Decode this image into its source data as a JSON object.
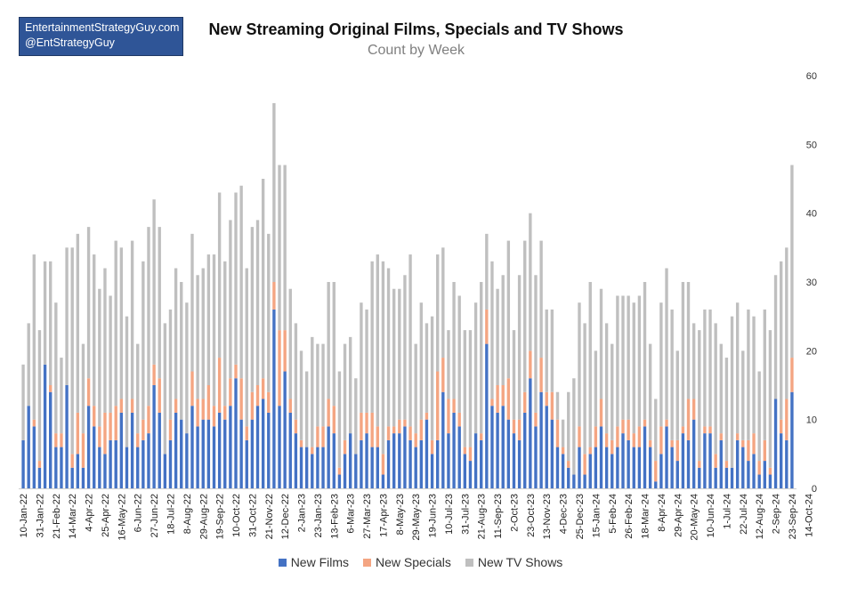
{
  "brand": {
    "line1": "EntertainmentStrategyGuy.com",
    "line2": "@EntStrategyGuy"
  },
  "chart_data": {
    "type": "bar",
    "stacked": true,
    "title": "New Streaming Original Films, Specials and TV Shows",
    "subtitle": "Count by Week",
    "xlabel": "",
    "ylabel": "",
    "ylim": [
      0,
      60
    ],
    "yticks": [
      0,
      10,
      20,
      30,
      40,
      50,
      60
    ],
    "y_axis_side": "right",
    "grid": false,
    "legend_position": "bottom",
    "x_start": "2022-01-10",
    "x_step_days": 7,
    "x_label_every": 3,
    "x_tick_labels": [
      "10-Jan-22",
      "31-Jan-22",
      "21-Feb-22",
      "14-Mar-22",
      "4-Apr-22",
      "25-Apr-22",
      "16-May-22",
      "6-Jun-22",
      "27-Jun-22",
      "18-Jul-22",
      "8-Aug-22",
      "29-Aug-22",
      "19-Sep-22",
      "10-Oct-22",
      "31-Oct-22",
      "21-Nov-22",
      "12-Dec-22",
      "2-Jan-23",
      "23-Jan-23",
      "13-Feb-23",
      "6-Mar-23",
      "27-Mar-23",
      "17-Apr-23",
      "8-May-23",
      "29-May-23",
      "19-Jun-23",
      "10-Jul-23",
      "31-Jul-23",
      "21-Aug-23",
      "11-Sep-23",
      "2-Oct-23",
      "23-Oct-23",
      "13-Nov-23",
      "4-Dec-23",
      "25-Dec-23",
      "15-Jan-24",
      "5-Feb-24",
      "26-Feb-24",
      "18-Mar-24",
      "8-Apr-24",
      "29-Apr-24",
      "20-May-24",
      "10-Jun-24",
      "1-Jul-24",
      "22-Jul-24",
      "12-Aug-24",
      "2-Sep-24",
      "23-Sep-24",
      "14-Oct-24"
    ],
    "series": [
      {
        "name": "New Films",
        "color": "#4472c4",
        "values": [
          7,
          12,
          9,
          3,
          18,
          14,
          6,
          6,
          15,
          3,
          5,
          3,
          12,
          9,
          6,
          5,
          7,
          7,
          11,
          6,
          11,
          6,
          7,
          8,
          15,
          11,
          5,
          7,
          11,
          10,
          8,
          12,
          9,
          10,
          10,
          9,
          11,
          10,
          12,
          16,
          10,
          7,
          10,
          12,
          13,
          11,
          26,
          12,
          17,
          11,
          8,
          6,
          6,
          5,
          6,
          6,
          9,
          8,
          2,
          5,
          8,
          5,
          7,
          8,
          6,
          6,
          2,
          7,
          8,
          8,
          9,
          7,
          6,
          7,
          10,
          5,
          7,
          14,
          8,
          11,
          9,
          5,
          4,
          8,
          7,
          21,
          12,
          11,
          12,
          10,
          8,
          7,
          11,
          16,
          9,
          14,
          12,
          10,
          6,
          5,
          3,
          2,
          6,
          2,
          5,
          6,
          9,
          6,
          5,
          6,
          8,
          7,
          6,
          6,
          9,
          6,
          1,
          5,
          9,
          6,
          4,
          8,
          7,
          10,
          3,
          8,
          8,
          3,
          7,
          3,
          3,
          7,
          6,
          4,
          5,
          2,
          4,
          2,
          13,
          8,
          7,
          14
        ]
      },
      {
        "name": "New Specials",
        "color": "#f4a582",
        "values": [
          0,
          0,
          1,
          1,
          0,
          1,
          2,
          2,
          0,
          2,
          6,
          5,
          4,
          3,
          3,
          6,
          4,
          5,
          2,
          0,
          2,
          2,
          3,
          4,
          3,
          5,
          0,
          3,
          2,
          0,
          0,
          5,
          4,
          3,
          5,
          3,
          8,
          2,
          4,
          2,
          6,
          2,
          4,
          3,
          3,
          3,
          4,
          11,
          6,
          2,
          2,
          1,
          0,
          1,
          3,
          3,
          4,
          4,
          1,
          2,
          0,
          0,
          4,
          3,
          5,
          3,
          3,
          2,
          1,
          2,
          1,
          2,
          2,
          3,
          1,
          2,
          10,
          5,
          5,
          2,
          2,
          1,
          2,
          0,
          1,
          5,
          1,
          4,
          3,
          6,
          2,
          3,
          3,
          4,
          2,
          5,
          2,
          4,
          4,
          1,
          1,
          0,
          3,
          3,
          1,
          3,
          4,
          2,
          2,
          3,
          2,
          3,
          2,
          3,
          1,
          1,
          3,
          4,
          1,
          1,
          3,
          1,
          6,
          3,
          1,
          1,
          1,
          2,
          1,
          1,
          0,
          1,
          1,
          3,
          3,
          2,
          3,
          1,
          0,
          2,
          6,
          5
        ]
      },
      {
        "name": "New TV Shows",
        "color": "#bfbfbf",
        "values": [
          11,
          12,
          24,
          19,
          15,
          18,
          19,
          11,
          20,
          30,
          26,
          13,
          22,
          22,
          20,
          21,
          17,
          24,
          22,
          19,
          23,
          13,
          23,
          26,
          24,
          22,
          19,
          16,
          19,
          20,
          19,
          20,
          18,
          19,
          19,
          22,
          24,
          21,
          23,
          25,
          28,
          23,
          24,
          24,
          29,
          23,
          26,
          24,
          24,
          16,
          14,
          13,
          11,
          16,
          12,
          12,
          17,
          18,
          14,
          14,
          14,
          11,
          16,
          15,
          22,
          25,
          28,
          23,
          20,
          19,
          21,
          25,
          13,
          17,
          13,
          18,
          17,
          16,
          10,
          17,
          17,
          17,
          17,
          19,
          22,
          11,
          20,
          14,
          16,
          20,
          13,
          21,
          22,
          20,
          20,
          17,
          12,
          12,
          4,
          4,
          10,
          14,
          18,
          19,
          24,
          11,
          16,
          16,
          14,
          19,
          18,
          18,
          19,
          19,
          20,
          14,
          9,
          18,
          22,
          19,
          13,
          21,
          17,
          11,
          19,
          17,
          17,
          19,
          13,
          15,
          22,
          19,
          13,
          19,
          17,
          13,
          19,
          20,
          18,
          23,
          22,
          28
        ]
      }
    ]
  }
}
